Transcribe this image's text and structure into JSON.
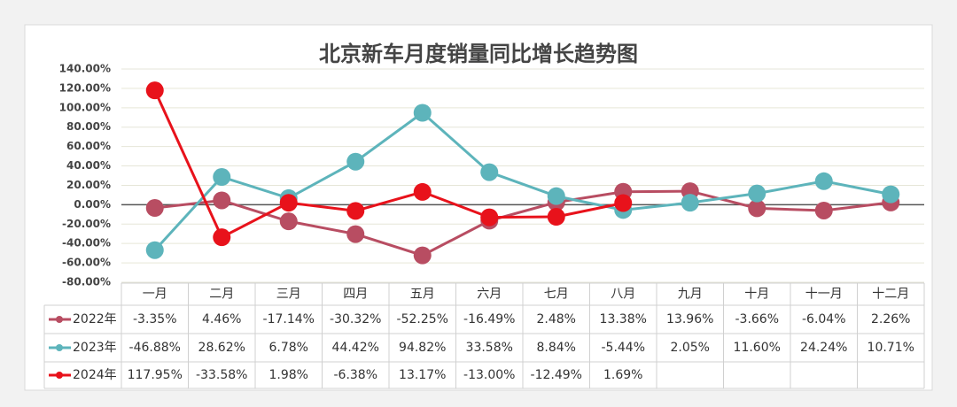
{
  "chart_data": {
    "type": "line",
    "title": "北京新车月度销量同比增长趋势图",
    "categories": [
      "一月",
      "二月",
      "三月",
      "四月",
      "五月",
      "六月",
      "七月",
      "八月",
      "九月",
      "十月",
      "十一月",
      "十二月"
    ],
    "series": [
      {
        "name": "2022年",
        "color": "#b84d62",
        "values": [
          -3.35,
          4.46,
          -17.14,
          -30.32,
          -52.25,
          -16.49,
          2.48,
          13.38,
          13.96,
          -3.66,
          -6.04,
          2.26
        ],
        "value_labels": [
          "-3.35%",
          "4.46%",
          "-17.14%",
          "-30.32%",
          "-52.25%",
          "-16.49%",
          "2.48%",
          "13.38%",
          "13.96%",
          "-3.66%",
          "-6.04%",
          "2.26%"
        ]
      },
      {
        "name": "2023年",
        "color": "#5db4bb",
        "values": [
          -46.88,
          28.62,
          6.78,
          44.42,
          94.82,
          33.58,
          8.84,
          -5.44,
          2.05,
          11.6,
          24.24,
          10.71
        ],
        "value_labels": [
          "-46.88%",
          "28.62%",
          "6.78%",
          "44.42%",
          "94.82%",
          "33.58%",
          "8.84%",
          "-5.44%",
          "2.05%",
          "11.60%",
          "24.24%",
          "10.71%"
        ]
      },
      {
        "name": "2024年",
        "color": "#e8121b",
        "values": [
          117.95,
          -33.58,
          1.98,
          -6.38,
          13.17,
          -13.0,
          -12.49,
          1.69,
          null,
          null,
          null,
          null
        ],
        "value_labels": [
          "117.95%",
          "-33.58%",
          "1.98%",
          "-6.38%",
          "13.17%",
          "-13.00%",
          "-12.49%",
          "1.69%",
          null,
          null,
          null,
          null
        ]
      }
    ],
    "ylim": [
      -80,
      140
    ],
    "yticks": [
      {
        "value": -80,
        "label": "-80.00%"
      },
      {
        "value": -60,
        "label": "-60.00%"
      },
      {
        "value": -40,
        "label": "-40.00%"
      },
      {
        "value": -20,
        "label": "-20.00%"
      },
      {
        "value": 0,
        "label": "0.00%"
      },
      {
        "value": 20,
        "label": "20.00%"
      },
      {
        "value": 40,
        "label": "40.00%"
      },
      {
        "value": 60,
        "label": "60.00%"
      },
      {
        "value": 80,
        "label": "80.00%"
      },
      {
        "value": 100,
        "label": "100.00%"
      },
      {
        "value": 120,
        "label": "120.00%"
      },
      {
        "value": 140,
        "label": "140.00%"
      }
    ],
    "grid": true,
    "data_table": true
  }
}
